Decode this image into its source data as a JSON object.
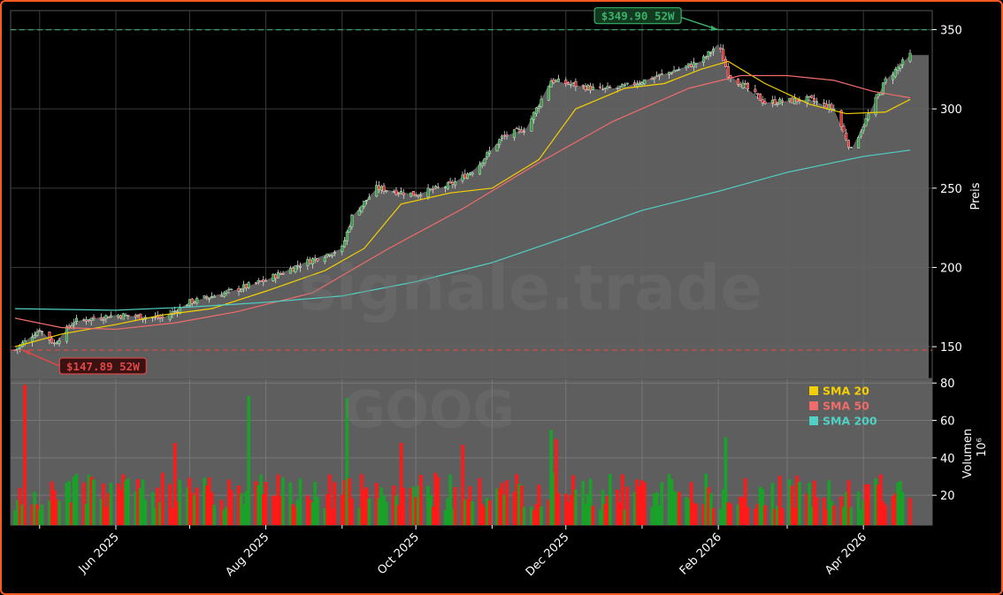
{
  "chart_data": {
    "type": "candlestick",
    "ticker_watermark": "GOOG",
    "site_watermark": "signale.trade",
    "price_axis": {
      "label": "Preis",
      "ticks": [
        150,
        200,
        250,
        300,
        350
      ],
      "ylim": [
        130,
        362
      ]
    },
    "volume_axis": {
      "label": "Volumen",
      "unit": "10⁶",
      "ticks": [
        20,
        40,
        60,
        80
      ],
      "ylim": [
        4,
        82
      ]
    },
    "x_axis": {
      "date_range": [
        "2025-04-21",
        "2026-04-20"
      ],
      "tick_labels": [
        {
          "date": "2025-06-01",
          "label": "Jun 2025"
        },
        {
          "date": "2025-08-01",
          "label": "Aug 2025"
        },
        {
          "date": "2025-10-01",
          "label": "Oct 2025"
        },
        {
          "date": "2025-12-01",
          "label": "Dec 2025"
        },
        {
          "date": "2026-02-01",
          "label": "Feb 2026"
        },
        {
          "date": "2026-04-01",
          "label": "Apr 2026"
        }
      ],
      "minor_tick_dates": [
        "2025-05-01",
        "2025-07-01",
        "2025-09-01",
        "2025-11-01",
        "2026-01-01",
        "2026-03-01"
      ]
    },
    "close_area_points": [
      [
        "2025-04-21",
        148
      ],
      [
        "2025-05-01",
        161
      ],
      [
        "2025-05-07",
        152
      ],
      [
        "2025-05-15",
        166
      ],
      [
        "2025-06-01",
        170
      ],
      [
        "2025-06-20",
        168
      ],
      [
        "2025-07-01",
        178
      ],
      [
        "2025-07-20",
        186
      ],
      [
        "2025-08-01",
        192
      ],
      [
        "2025-08-15",
        202
      ],
      [
        "2025-09-01",
        212
      ],
      [
        "2025-09-05",
        232
      ],
      [
        "2025-09-15",
        250
      ],
      [
        "2025-10-01",
        246
      ],
      [
        "2025-10-15",
        252
      ],
      [
        "2025-10-25",
        262
      ],
      [
        "2025-11-05",
        282
      ],
      [
        "2025-11-15",
        288
      ],
      [
        "2025-11-25",
        318
      ],
      [
        "2025-12-05",
        315
      ],
      [
        "2025-12-15",
        312
      ],
      [
        "2025-12-25",
        314
      ],
      [
        "2026-01-10",
        322
      ],
      [
        "2026-01-25",
        330
      ],
      [
        "2026-02-01",
        341
      ],
      [
        "2026-02-05",
        322
      ],
      [
        "2026-02-20",
        304
      ],
      [
        "2026-03-10",
        306
      ],
      [
        "2026-03-20",
        300
      ],
      [
        "2026-03-27",
        274
      ],
      [
        "2026-04-01",
        290
      ],
      [
        "2026-04-10",
        318
      ],
      [
        "2026-04-20",
        334
      ]
    ],
    "series": [
      {
        "name": "SMA 20",
        "color": "#f5d000",
        "points": [
          [
            "2025-04-21",
            150
          ],
          [
            "2025-05-10",
            158
          ],
          [
            "2025-06-01",
            164
          ],
          [
            "2025-06-20",
            170
          ],
          [
            "2025-07-10",
            174
          ],
          [
            "2025-08-01",
            185
          ],
          [
            "2025-08-25",
            198
          ],
          [
            "2025-09-10",
            212
          ],
          [
            "2025-09-25",
            240
          ],
          [
            "2025-10-15",
            247
          ],
          [
            "2025-11-01",
            250
          ],
          [
            "2025-11-20",
            268
          ],
          [
            "2025-12-05",
            300
          ],
          [
            "2025-12-25",
            313
          ],
          [
            "2026-01-10",
            316
          ],
          [
            "2026-01-25",
            325
          ],
          [
            "2026-02-05",
            330
          ],
          [
            "2026-02-20",
            316
          ],
          [
            "2026-03-10",
            303
          ],
          [
            "2026-03-25",
            297
          ],
          [
            "2026-04-10",
            298
          ],
          [
            "2026-04-20",
            306
          ]
        ]
      },
      {
        "name": "SMA 50",
        "color": "#f26b6b",
        "points": [
          [
            "2025-04-21",
            168
          ],
          [
            "2025-05-10",
            162
          ],
          [
            "2025-06-01",
            161
          ],
          [
            "2025-06-25",
            165
          ],
          [
            "2025-07-20",
            172
          ],
          [
            "2025-08-20",
            184
          ],
          [
            "2025-09-20",
            212
          ],
          [
            "2025-10-20",
            237
          ],
          [
            "2025-11-20",
            266
          ],
          [
            "2025-12-20",
            292
          ],
          [
            "2026-01-20",
            313
          ],
          [
            "2026-02-10",
            321
          ],
          [
            "2026-03-01",
            321
          ],
          [
            "2026-03-20",
            318
          ],
          [
            "2026-04-05",
            311
          ],
          [
            "2026-04-20",
            307
          ]
        ]
      },
      {
        "name": "SMA 200",
        "color": "#4fd1c5",
        "points": [
          [
            "2025-04-21",
            174
          ],
          [
            "2025-06-01",
            173
          ],
          [
            "2025-07-01",
            175
          ],
          [
            "2025-08-01",
            178
          ],
          [
            "2025-09-01",
            182
          ],
          [
            "2025-10-01",
            191
          ],
          [
            "2025-11-01",
            203
          ],
          [
            "2025-12-01",
            219
          ],
          [
            "2026-01-01",
            236
          ],
          [
            "2026-02-01",
            248
          ],
          [
            "2026-03-01",
            260
          ],
          [
            "2026-04-01",
            270
          ],
          [
            "2026-04-20",
            274
          ]
        ]
      }
    ],
    "reference_lines": [
      {
        "label": "$349.90 52W",
        "value": 349.9,
        "color": "#3ab26a",
        "date": "2026-02-01"
      },
      {
        "label": "$147.89 52W",
        "value": 147.89,
        "color": "#e04848",
        "date": "2025-04-24"
      }
    ],
    "legend": {
      "placement": "top-right of volume panel",
      "entries": [
        "SMA 20",
        "SMA 50",
        "SMA 200"
      ]
    },
    "candle_colors": {
      "up": "#2e9e3e",
      "down": "#e02a2a"
    },
    "volume_bar_colors": {
      "up": "#1aa12a",
      "down": "#ff1a1a"
    },
    "volume_spikes_millions": [
      [
        "2025-04-25",
        79,
        "down"
      ],
      [
        "2025-07-25",
        73,
        "up"
      ],
      [
        "2025-09-03",
        72,
        "up"
      ],
      [
        "2025-11-25",
        55,
        "up"
      ],
      [
        "2025-11-27",
        50,
        "down"
      ],
      [
        "2026-02-04",
        51,
        "up"
      ],
      [
        "2025-10-20",
        47,
        "down"
      ],
      [
        "2025-09-25",
        48,
        "down"
      ],
      [
        "2025-06-25",
        48,
        "down"
      ]
    ],
    "grid": true
  }
}
